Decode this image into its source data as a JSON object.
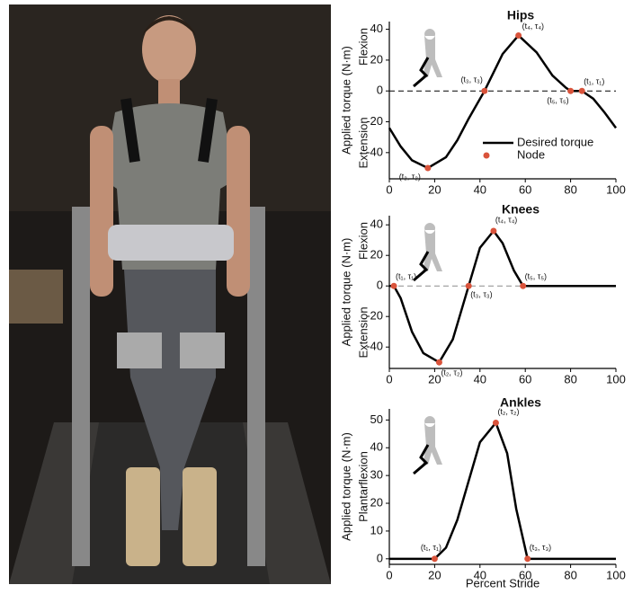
{
  "chart_data": [
    {
      "type": "line",
      "title": "Hips",
      "y_label": "Applied torque (N·m)",
      "y_label_top": "Flexion",
      "y_label_bottom": "Extension",
      "x": [
        0,
        5,
        10,
        17,
        25,
        30,
        35,
        42,
        50,
        57,
        65,
        72,
        78,
        80,
        85,
        90,
        95,
        100
      ],
      "series": [
        {
          "name": "Desired torque",
          "color": "#000000",
          "values": [
            -24,
            -36,
            -45,
            -50,
            -43,
            -32,
            -18,
            0,
            24,
            36,
            25,
            10,
            2,
            0,
            0,
            -5,
            -14,
            -24
          ]
        }
      ],
      "nodes": {
        "name": "Node",
        "color": "#d9533b",
        "x": [
          17,
          42,
          57,
          80,
          85
        ],
        "values": [
          -50,
          0,
          36,
          0,
          0
        ],
        "labels": [
          "(t₂, τ₂)",
          "(t₃, τ₃)",
          "(t₄, τ₄)",
          "(t₅, τ₅)",
          "(t₁, τ₁)"
        ]
      },
      "xlim": [
        0,
        100
      ],
      "xticks": [
        0,
        20,
        40,
        60,
        80,
        100
      ],
      "ylim": [
        -57,
        45
      ],
      "yticks": [
        -40,
        -20,
        0,
        20,
        40
      ],
      "zero_line": true,
      "legend": true
    },
    {
      "type": "line",
      "title": "Knees",
      "y_label": "Applied torque (N·m)",
      "y_label_top": "Flexion",
      "y_label_bottom": "Extension",
      "x": [
        0,
        2,
        5,
        10,
        15,
        22,
        28,
        35,
        40,
        46,
        50,
        55,
        59,
        65,
        100
      ],
      "series": [
        {
          "color": "#000000",
          "values": [
            0,
            0,
            -8,
            -30,
            -44,
            -50,
            -35,
            0,
            25,
            36,
            28,
            10,
            0,
            0,
            0
          ]
        }
      ],
      "nodes": {
        "color": "#d9533b",
        "x": [
          2,
          22,
          35,
          46,
          59
        ],
        "values": [
          0,
          -50,
          0,
          36,
          0
        ],
        "labels": [
          "(t₁, τ₁)",
          "(t₂, τ₂)",
          "(t₃, τ₃)",
          "(t₄, τ₄)",
          "(t₅, τ₅)"
        ]
      },
      "xlim": [
        0,
        100
      ],
      "xticks": [
        0,
        20,
        40,
        60,
        80,
        100
      ],
      "ylim": [
        -54,
        46
      ],
      "yticks": [
        -40,
        -20,
        0,
        20,
        40
      ],
      "zero_line": true,
      "legend": false
    },
    {
      "type": "line",
      "title": "Ankles",
      "y_label": "Applied torque (N·m)",
      "y_label_middle": "Plantarflexion",
      "x_label": "Percent Stride",
      "x": [
        0,
        20,
        25,
        30,
        35,
        40,
        47,
        52,
        56,
        61,
        100
      ],
      "series": [
        {
          "color": "#000000",
          "values": [
            0,
            0,
            4,
            14,
            28,
            42,
            49,
            38,
            18,
            0,
            0
          ]
        }
      ],
      "nodes": {
        "color": "#d9533b",
        "x": [
          20,
          47,
          61
        ],
        "values": [
          0,
          49,
          0
        ],
        "labels": [
          "(t₁, τ₁)",
          "(t₂, τ₂)",
          "(t₃, τ₃)"
        ]
      },
      "xlim": [
        0,
        100
      ],
      "xticks": [
        0,
        20,
        40,
        60,
        80,
        100
      ],
      "ylim": [
        -2,
        54
      ],
      "yticks": [
        0,
        10,
        20,
        30,
        40,
        50
      ],
      "zero_line": false,
      "legend": false
    }
  ]
}
